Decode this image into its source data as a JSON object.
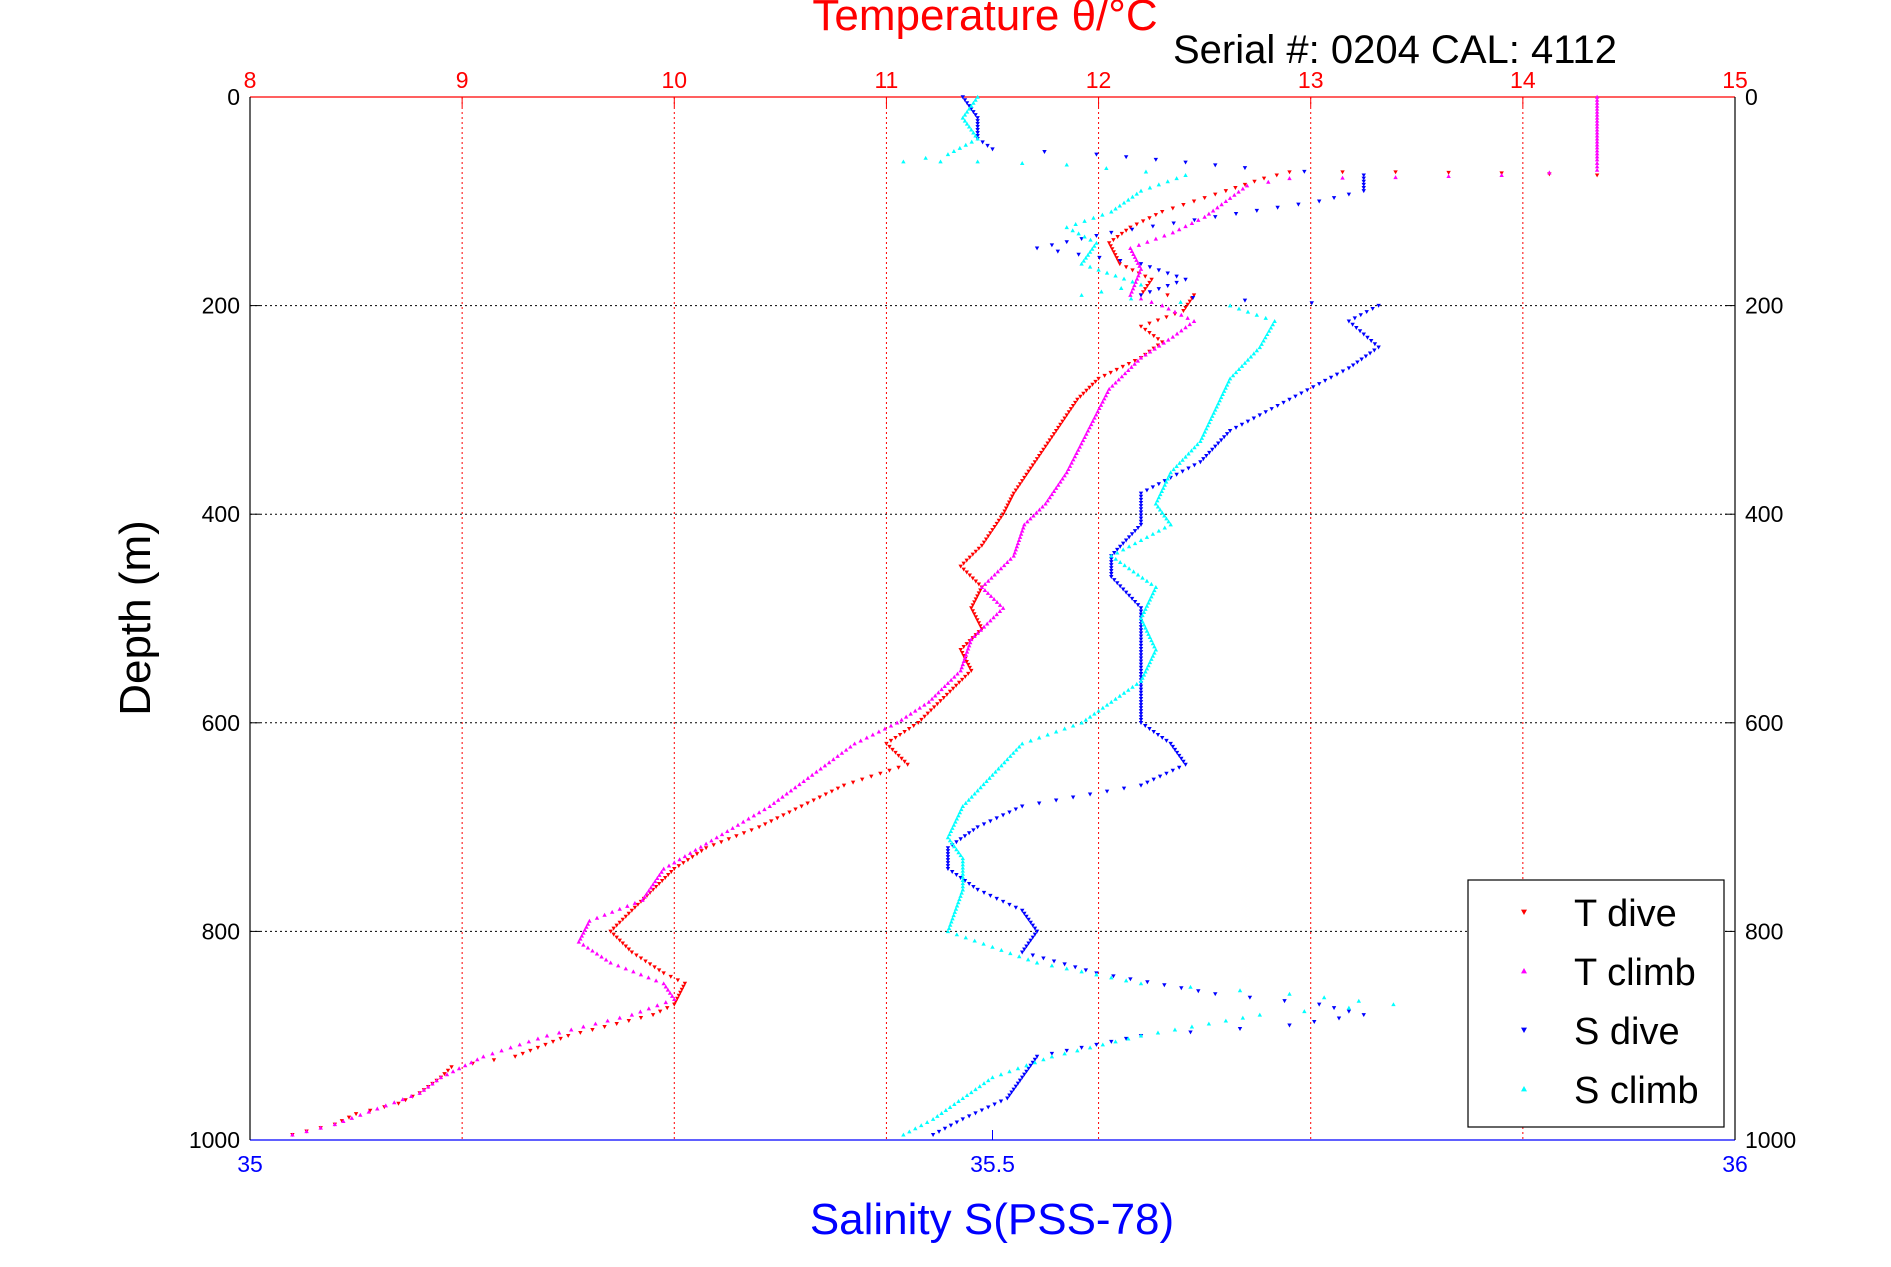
{
  "chart_data": {
    "type": "scatter",
    "title": "Temperature θ/°C",
    "annotation": "Serial #: 0204  CAL: 4112",
    "xlabel_bottom": "Salinity S(PSS-78)",
    "ylabel": "Depth (m)",
    "x_top": {
      "label": "Temperature θ/°C",
      "range": [
        8,
        15
      ],
      "ticks": [
        "8",
        "9",
        "10",
        "11",
        "12",
        "13",
        "14",
        "15"
      ],
      "color": "#ff0000"
    },
    "x_bottom": {
      "label": "Salinity S(PSS-78)",
      "range": [
        35,
        36
      ],
      "ticks": [
        "35",
        "35.5",
        "36"
      ],
      "color": "#0000ff"
    },
    "y": {
      "range": [
        0,
        1000
      ],
      "reversed": true,
      "ticks": [
        "0",
        "200",
        "400",
        "600",
        "800",
        "1000"
      ]
    },
    "grid": true,
    "legend_position": "bottom-right",
    "series": [
      {
        "name": "T dive",
        "axis": "top",
        "color": "#ff0000",
        "marker": "triangle-down",
        "points": [
          [
            14.35,
            75
          ],
          [
            13.9,
            73
          ],
          [
            13.4,
            72
          ],
          [
            12.9,
            72
          ],
          [
            12.78,
            78
          ],
          [
            12.6,
            90
          ],
          [
            12.45,
            100
          ],
          [
            12.3,
            110
          ],
          [
            12.15,
            125
          ],
          [
            12.05,
            140
          ],
          [
            12.1,
            160
          ],
          [
            12.25,
            175
          ],
          [
            12.2,
            190
          ],
          [
            12.45,
            190
          ],
          [
            12.4,
            205
          ],
          [
            12.2,
            220
          ],
          [
            12.3,
            235
          ],
          [
            12.2,
            250
          ],
          [
            12.0,
            270
          ],
          [
            11.9,
            290
          ],
          [
            11.8,
            320
          ],
          [
            11.7,
            350
          ],
          [
            11.6,
            380
          ],
          [
            11.55,
            400
          ],
          [
            11.45,
            430
          ],
          [
            11.35,
            450
          ],
          [
            11.45,
            470
          ],
          [
            11.4,
            490
          ],
          [
            11.45,
            510
          ],
          [
            11.35,
            530
          ],
          [
            11.4,
            550
          ],
          [
            11.3,
            570
          ],
          [
            11.15,
            600
          ],
          [
            11.0,
            620
          ],
          [
            11.1,
            640
          ],
          [
            10.8,
            660
          ],
          [
            10.6,
            680
          ],
          [
            10.4,
            700
          ],
          [
            10.15,
            720
          ],
          [
            10.0,
            740
          ],
          [
            9.9,
            760
          ],
          [
            9.8,
            780
          ],
          [
            9.7,
            800
          ],
          [
            9.8,
            820
          ],
          [
            9.95,
            840
          ],
          [
            10.05,
            850
          ],
          [
            10.0,
            870
          ],
          [
            9.9,
            880
          ],
          [
            9.5,
            900
          ],
          [
            9.25,
            920
          ],
          [
            8.95,
            930
          ],
          [
            8.9,
            940
          ],
          [
            8.8,
            955
          ],
          [
            8.7,
            965
          ],
          [
            8.5,
            975
          ],
          [
            8.4,
            985
          ],
          [
            8.2,
            995
          ]
        ]
      },
      {
        "name": "T climb",
        "axis": "top",
        "color": "#ff00ff",
        "marker": "triangle-up",
        "points": [
          [
            14.35,
            0
          ],
          [
            14.35,
            20
          ],
          [
            14.35,
            40
          ],
          [
            14.35,
            60
          ],
          [
            14.35,
            70
          ],
          [
            13.9,
            75
          ],
          [
            13.4,
            77
          ],
          [
            12.9,
            78
          ],
          [
            12.7,
            85
          ],
          [
            12.6,
            100
          ],
          [
            12.5,
            115
          ],
          [
            12.35,
            130
          ],
          [
            12.15,
            145
          ],
          [
            12.2,
            165
          ],
          [
            12.15,
            190
          ],
          [
            12.3,
            200
          ],
          [
            12.45,
            215
          ],
          [
            12.35,
            230
          ],
          [
            12.2,
            250
          ],
          [
            12.05,
            280
          ],
          [
            11.95,
            320
          ],
          [
            11.85,
            360
          ],
          [
            11.75,
            390
          ],
          [
            11.65,
            410
          ],
          [
            11.6,
            440
          ],
          [
            11.45,
            470
          ],
          [
            11.55,
            490
          ],
          [
            11.4,
            520
          ],
          [
            11.35,
            550
          ],
          [
            11.2,
            580
          ],
          [
            11.05,
            600
          ],
          [
            10.85,
            620
          ],
          [
            10.65,
            650
          ],
          [
            10.45,
            680
          ],
          [
            10.2,
            710
          ],
          [
            9.95,
            740
          ],
          [
            9.85,
            770
          ],
          [
            9.6,
            790
          ],
          [
            9.55,
            810
          ],
          [
            9.7,
            830
          ],
          [
            9.95,
            850
          ],
          [
            10.0,
            865
          ],
          [
            9.8,
            880
          ],
          [
            9.4,
            900
          ],
          [
            9.1,
            920
          ],
          [
            8.9,
            940
          ],
          [
            8.8,
            955
          ],
          [
            8.6,
            970
          ],
          [
            8.4,
            985
          ],
          [
            8.2,
            995
          ]
        ]
      },
      {
        "name": "S dive",
        "axis": "bottom",
        "color": "#0000ff",
        "marker": "triangle-down",
        "points": [
          [
            35.48,
            0
          ],
          [
            35.49,
            20
          ],
          [
            35.49,
            40
          ],
          [
            35.5,
            50
          ],
          [
            35.57,
            55
          ],
          [
            35.61,
            60
          ],
          [
            35.67,
            68
          ],
          [
            35.75,
            75
          ],
          [
            35.75,
            90
          ],
          [
            35.72,
            100
          ],
          [
            35.65,
            115
          ],
          [
            35.58,
            130
          ],
          [
            35.53,
            145
          ],
          [
            35.6,
            160
          ],
          [
            35.63,
            175
          ],
          [
            35.6,
            190
          ],
          [
            35.67,
            195
          ],
          [
            35.76,
            200
          ],
          [
            35.74,
            215
          ],
          [
            35.76,
            240
          ],
          [
            35.74,
            260
          ],
          [
            35.7,
            290
          ],
          [
            35.66,
            320
          ],
          [
            35.64,
            350
          ],
          [
            35.6,
            380
          ],
          [
            35.6,
            410
          ],
          [
            35.58,
            440
          ],
          [
            35.58,
            460
          ],
          [
            35.6,
            490
          ],
          [
            35.6,
            520
          ],
          [
            35.6,
            550
          ],
          [
            35.6,
            580
          ],
          [
            35.6,
            600
          ],
          [
            35.62,
            620
          ],
          [
            35.63,
            640
          ],
          [
            35.6,
            660
          ],
          [
            35.52,
            680
          ],
          [
            35.49,
            700
          ],
          [
            35.47,
            720
          ],
          [
            35.47,
            740
          ],
          [
            35.49,
            760
          ],
          [
            35.52,
            780
          ],
          [
            35.53,
            800
          ],
          [
            35.52,
            820
          ],
          [
            35.57,
            840
          ],
          [
            35.65,
            860
          ],
          [
            35.72,
            870
          ],
          [
            35.75,
            880
          ],
          [
            35.7,
            890
          ],
          [
            35.6,
            900
          ],
          [
            35.53,
            920
          ],
          [
            35.52,
            940
          ],
          [
            35.51,
            960
          ],
          [
            35.48,
            980
          ],
          [
            35.46,
            995
          ]
        ]
      },
      {
        "name": "S climb",
        "axis": "bottom",
        "color": "#00ffff",
        "marker": "triangle-up",
        "points": [
          [
            35.49,
            0
          ],
          [
            35.48,
            20
          ],
          [
            35.49,
            40
          ],
          [
            35.47,
            55
          ],
          [
            35.44,
            62
          ],
          [
            35.49,
            62
          ],
          [
            35.55,
            65
          ],
          [
            35.63,
            75
          ],
          [
            35.6,
            90
          ],
          [
            35.58,
            110
          ],
          [
            35.55,
            125
          ],
          [
            35.57,
            140
          ],
          [
            35.56,
            160
          ],
          [
            35.6,
            180
          ],
          [
            35.56,
            190
          ],
          [
            35.66,
            200
          ],
          [
            35.69,
            215
          ],
          [
            35.68,
            240
          ],
          [
            35.66,
            270
          ],
          [
            35.65,
            300
          ],
          [
            35.64,
            330
          ],
          [
            35.62,
            360
          ],
          [
            35.61,
            390
          ],
          [
            35.62,
            410
          ],
          [
            35.58,
            440
          ],
          [
            35.61,
            470
          ],
          [
            35.6,
            500
          ],
          [
            35.61,
            530
          ],
          [
            35.6,
            560
          ],
          [
            35.58,
            580
          ],
          [
            35.56,
            600
          ],
          [
            35.52,
            620
          ],
          [
            35.5,
            650
          ],
          [
            35.48,
            680
          ],
          [
            35.47,
            710
          ],
          [
            35.48,
            730
          ],
          [
            35.48,
            760
          ],
          [
            35.47,
            800
          ],
          [
            35.53,
            830
          ],
          [
            35.6,
            850
          ],
          [
            35.7,
            860
          ],
          [
            35.77,
            870
          ],
          [
            35.68,
            880
          ],
          [
            35.6,
            900
          ],
          [
            35.54,
            920
          ],
          [
            35.5,
            940
          ],
          [
            35.48,
            960
          ],
          [
            35.46,
            980
          ],
          [
            35.44,
            995
          ]
        ]
      }
    ]
  }
}
